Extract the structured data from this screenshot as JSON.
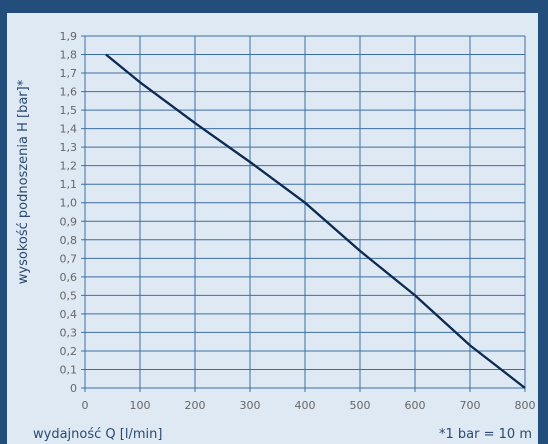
{
  "chart_data": {
    "type": "line",
    "title": "",
    "xlabel": "wydajność Q [l/min]",
    "ylabel": "wysokość podnoszenia H [bar]*",
    "footnote": "*1 bar = 10 m",
    "xlim": [
      0,
      800
    ],
    "ylim": [
      0,
      1.9
    ],
    "xticks": [
      "0",
      "100",
      "200",
      "300",
      "400",
      "500",
      "600",
      "700",
      "800"
    ],
    "yticks": [
      "0",
      "0,1",
      "0,2",
      "0,3",
      "0,4",
      "0,5",
      "0,6",
      "0,7",
      "0,8",
      "0,9",
      "1,0",
      "1,1",
      "1,2",
      "1,3",
      "1,4",
      "1,5",
      "1,6",
      "1,7",
      "1,8",
      "1,9"
    ],
    "grid": true,
    "series": [
      {
        "color": "#0c2a52",
        "x": [
          38,
          100,
          200,
          300,
          400,
          500,
          600,
          700,
          800
        ],
        "y": [
          1.8,
          1.65,
          1.43,
          1.22,
          1.0,
          0.74,
          0.5,
          0.23,
          0.0
        ]
      }
    ]
  }
}
